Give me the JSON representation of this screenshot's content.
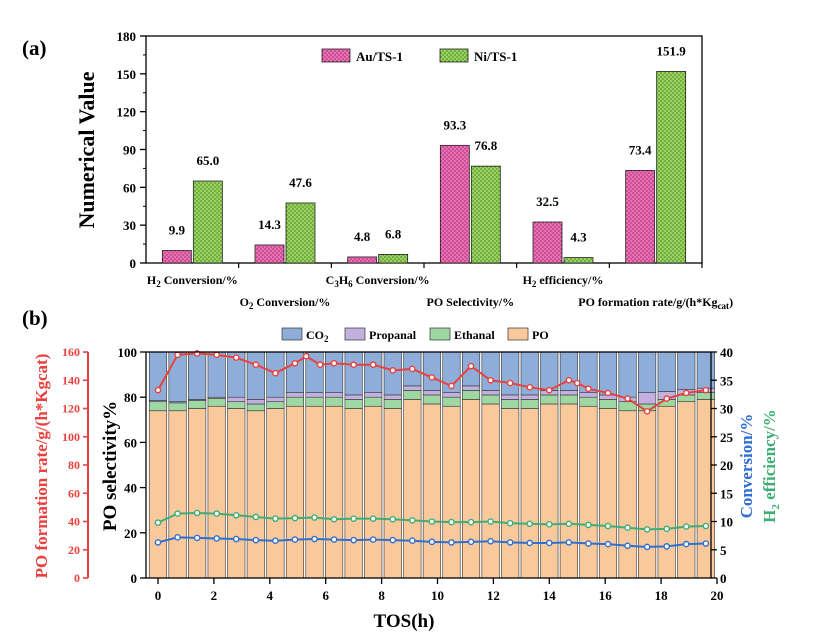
{
  "panels": {
    "a": "(a)",
    "b": "(b)"
  },
  "colors": {
    "au": "#f06bb5",
    "ni": "#94d45a",
    "co2": "#8fadd9",
    "propanal": "#c3b0e0",
    "ethanal": "#9fd7a2",
    "po": "#f9c89b",
    "rate": "#e8413e",
    "conversion": "#2f6fd1",
    "h2eff": "#3fae75"
  },
  "chart_data": [
    {
      "type": "bar",
      "ylabel": "Numerical Value",
      "ylim": [
        0,
        180
      ],
      "yticks": [
        0,
        30,
        60,
        90,
        120,
        150,
        180
      ],
      "legend_position": "top-center",
      "categories": [
        {
          "main": "H",
          "sub": "2",
          "rest": " Conversion/%"
        },
        {
          "main": "O",
          "sub": "2",
          "rest": " Conversion/%"
        },
        {
          "main": "C",
          "sub": "3",
          "mid": "H",
          "sub2": "6",
          "rest": " Conversion/%"
        },
        {
          "main": "PO Selectivity/%"
        },
        {
          "main": "H",
          "sub": "2",
          "rest": " efficiency/%"
        },
        {
          "main": "PO formation rate/g/(h*Kg",
          "sub": "cat",
          "rest": ")"
        }
      ],
      "series": [
        {
          "name": "Au/TS-1",
          "values": [
            9.9,
            14.3,
            4.8,
            93.3,
            32.5,
            73.4
          ],
          "labels": [
            "9.9",
            "14.3",
            "4.8",
            "93.3",
            "32.5",
            "73.4"
          ]
        },
        {
          "name": "Ni/TS-1",
          "values": [
            65.0,
            47.6,
            6.8,
            76.8,
            4.3,
            151.9
          ],
          "labels": [
            "65.0",
            "47.6",
            "6.8",
            "76.8",
            "4.3",
            "151.9"
          ]
        }
      ]
    },
    {
      "type": "bar",
      "stacked": true,
      "xlabel": "TOS(h)",
      "ylabel": "PO selectivity%",
      "ylabel_left": "PO formation rate/g/(h*Kgcat)",
      "ylabel_right1": "Conversion/%",
      "ylabel_right2": {
        "main": "H",
        "sub": "2",
        "rest": " efficiency/%"
      },
      "xlim": [
        0,
        20
      ],
      "ylim": [
        0,
        100
      ],
      "ylim_left": [
        0,
        160
      ],
      "ylim_right": [
        0,
        40
      ],
      "xticks": [
        0,
        2,
        4,
        6,
        8,
        10,
        12,
        14,
        16,
        18,
        20
      ],
      "yticks": [
        0,
        20,
        40,
        60,
        80,
        100
      ],
      "yticks_left": [
        0,
        20,
        40,
        60,
        80,
        100,
        120,
        140,
        160
      ],
      "yticks_right": [
        0,
        5,
        10,
        15,
        20,
        25,
        30,
        35,
        40
      ],
      "legend_position": "top",
      "legend": [
        {
          "name": "CO",
          "sub": "2"
        },
        {
          "name": "Propanal"
        },
        {
          "name": "Ethanal"
        },
        {
          "name": "PO"
        }
      ],
      "x": [
        0,
        0.7,
        1.4,
        2.1,
        2.8,
        3.5,
        4.2,
        4.9,
        5.6,
        6.3,
        7.0,
        7.7,
        8.4,
        9.1,
        9.8,
        10.5,
        11.2,
        11.9,
        12.6,
        13.3,
        14.0,
        14.7,
        15.4,
        16.1,
        16.8,
        17.5,
        18.2,
        18.9,
        19.6
      ],
      "stack_series": [
        {
          "name": "PO",
          "values": [
            74,
            74,
            75,
            76,
            75,
            74,
            75,
            76,
            76,
            76,
            75,
            76,
            75,
            79,
            77,
            76,
            79,
            77,
            75,
            75,
            77,
            77,
            76,
            75,
            74,
            74,
            76,
            78,
            79
          ]
        },
        {
          "name": "Ethanal",
          "values": [
            4,
            3.5,
            3.5,
            3.5,
            3,
            3,
            3,
            4,
            4,
            4,
            4,
            4,
            4,
            4,
            4,
            4,
            4,
            4,
            4,
            4,
            4,
            4,
            4,
            4,
            4,
            3,
            3,
            3,
            3
          ]
        },
        {
          "name": "Propanal",
          "values": [
            0.5,
            0.5,
            0.5,
            0.5,
            2,
            2,
            2,
            2,
            2,
            2,
            2,
            2,
            2,
            2,
            2,
            2,
            2,
            2,
            2,
            2,
            2,
            2,
            2,
            2,
            2,
            5,
            3.5,
            2.5,
            2
          ]
        },
        {
          "name": "CO2",
          "values": [
            21.5,
            22,
            21,
            20,
            20,
            21,
            20,
            18,
            18,
            18,
            19,
            18,
            19,
            15,
            17,
            18,
            15,
            17,
            19,
            19,
            17,
            17,
            18,
            19,
            20,
            18,
            17.5,
            16.5,
            16
          ]
        }
      ],
      "line_series": [
        {
          "name": "PO formation rate",
          "axis": "left",
          "x": [
            0,
            0.7,
            1.4,
            2.1,
            2.8,
            3.5,
            4.2,
            4.9,
            5.3,
            5.8,
            6.3,
            7.0,
            7.7,
            8.4,
            9.1,
            9.8,
            10.5,
            11.2,
            11.9,
            12.6,
            13.3,
            14.0,
            14.7,
            15.0,
            15.4,
            16.1,
            16.8,
            17.5,
            18.2,
            18.9,
            19.6
          ],
          "values": [
            133,
            158,
            159,
            158,
            156,
            151,
            145,
            152,
            157,
            151,
            152,
            151,
            151,
            147,
            148,
            142,
            136,
            150,
            140,
            138,
            135,
            133,
            140,
            138,
            134,
            131,
            127,
            118,
            127,
            131,
            133
          ]
        },
        {
          "name": "Conversion",
          "axis": "right",
          "x": [
            0,
            0.7,
            1.4,
            2.1,
            2.8,
            3.5,
            4.2,
            4.9,
            5.6,
            6.3,
            7.0,
            7.7,
            8.4,
            9.1,
            9.8,
            10.5,
            11.2,
            11.9,
            12.6,
            13.3,
            14.0,
            14.7,
            15.4,
            16.1,
            16.8,
            17.5,
            18.2,
            18.9,
            19.6
          ],
          "values": [
            6.3,
            7.2,
            7.1,
            7.0,
            6.9,
            6.7,
            6.6,
            6.8,
            6.9,
            6.8,
            6.7,
            6.8,
            6.7,
            6.6,
            6.4,
            6.3,
            6.4,
            6.5,
            6.3,
            6.2,
            6.2,
            6.3,
            6.1,
            6.0,
            5.7,
            5.5,
            5.6,
            6.0,
            6.1
          ]
        },
        {
          "name": "H2 efficiency",
          "axis": "right",
          "x": [
            0,
            0.7,
            1.4,
            2.1,
            2.8,
            3.5,
            4.2,
            4.9,
            5.6,
            6.3,
            7.0,
            7.7,
            8.4,
            9.1,
            9.8,
            10.5,
            11.2,
            11.9,
            12.6,
            13.3,
            14.0,
            14.7,
            15.4,
            16.1,
            16.8,
            17.5,
            18.2,
            18.9,
            19.6
          ],
          "values": [
            9.8,
            11.4,
            11.5,
            11.4,
            11.1,
            10.8,
            10.5,
            10.6,
            10.7,
            10.4,
            10.5,
            10.5,
            10.4,
            10.2,
            10.0,
            9.9,
            9.9,
            10.0,
            9.7,
            9.6,
            9.5,
            9.6,
            9.4,
            9.2,
            8.9,
            8.6,
            8.7,
            9.1,
            9.2
          ]
        }
      ]
    }
  ]
}
